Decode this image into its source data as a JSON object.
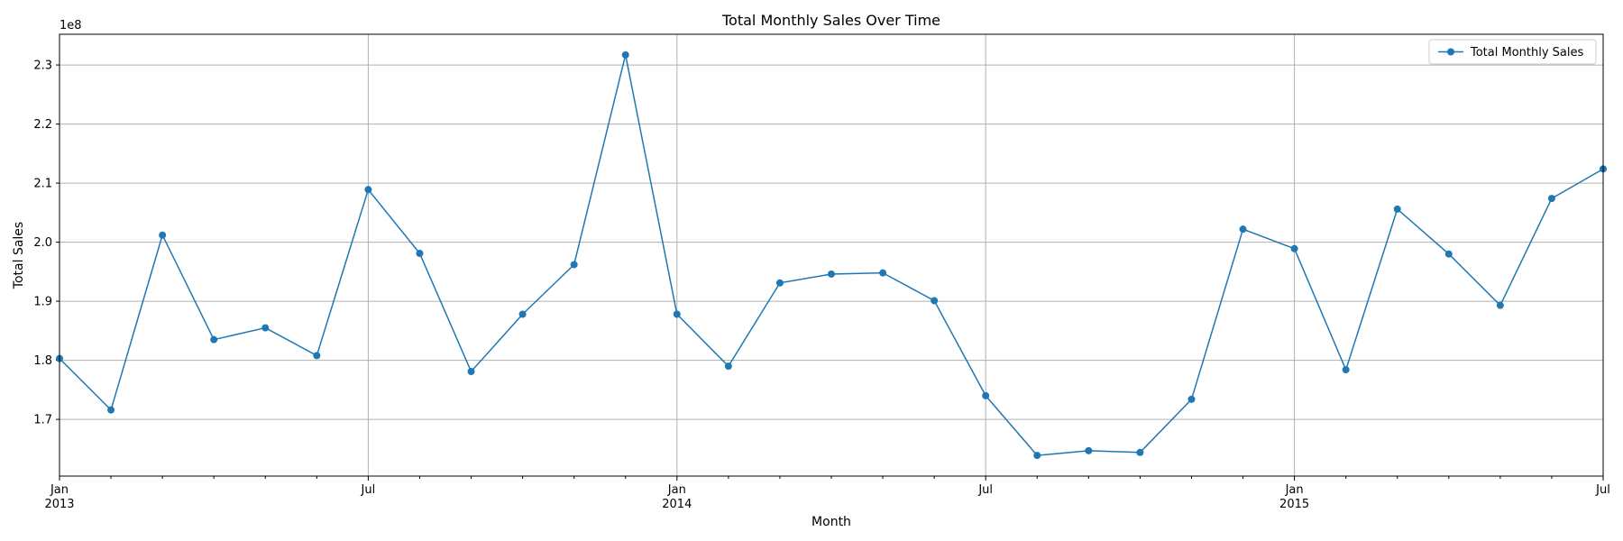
{
  "chart_data": {
    "type": "line",
    "title": "Total Monthly Sales Over Time",
    "xlabel": "Month",
    "ylabel": "Total Sales",
    "y_offset_label": "1e8",
    "x": [
      "2013-01",
      "2013-02",
      "2013-03",
      "2013-04",
      "2013-05",
      "2013-06",
      "2013-07",
      "2013-08",
      "2013-09",
      "2013-10",
      "2013-11",
      "2013-12",
      "2014-01",
      "2014-02",
      "2014-03",
      "2014-04",
      "2014-05",
      "2014-06",
      "2014-07",
      "2014-08",
      "2014-09",
      "2014-10",
      "2014-11",
      "2014-12",
      "2015-01",
      "2015-02",
      "2015-03",
      "2015-04",
      "2015-05",
      "2015-06",
      "2015-07"
    ],
    "series": [
      {
        "name": "Total Monthly Sales",
        "color": "#1f77b4",
        "marker": "circle",
        "values": [
          180300000,
          171600000,
          201200000,
          183500000,
          185500000,
          180800000,
          208900000,
          198100000,
          178100000,
          187800000,
          196200000,
          231700000,
          187800000,
          179000000,
          193100000,
          194600000,
          194800000,
          190100000,
          174000000,
          163900000,
          164700000,
          164400000,
          173400000,
          202200000,
          198900000,
          178400000,
          205600000,
          198000000,
          189300000,
          207400000,
          212400000
        ]
      }
    ],
    "ylim": [
      160400000,
      235200000
    ],
    "xlim": [
      "2013-01",
      "2015-07"
    ],
    "yticks": [
      {
        "value": 170000000,
        "label": "1.7"
      },
      {
        "value": 180000000,
        "label": "1.8"
      },
      {
        "value": 190000000,
        "label": "1.9"
      },
      {
        "value": 200000000,
        "label": "2.0"
      },
      {
        "value": 210000000,
        "label": "2.1"
      },
      {
        "value": 220000000,
        "label": "2.2"
      },
      {
        "value": 230000000,
        "label": "2.3"
      }
    ],
    "xticks_major": [
      {
        "month": "2013-01",
        "label": "Jan",
        "sublabel": "2013"
      },
      {
        "month": "2013-07",
        "label": "Jul",
        "sublabel": ""
      },
      {
        "month": "2014-01",
        "label": "Jan",
        "sublabel": "2014"
      },
      {
        "month": "2014-07",
        "label": "Jul",
        "sublabel": ""
      },
      {
        "month": "2015-01",
        "label": "Jan",
        "sublabel": "2015"
      },
      {
        "month": "2015-07",
        "label": "Jul",
        "sublabel": ""
      }
    ],
    "grid": true,
    "legend_position": "top-right"
  }
}
